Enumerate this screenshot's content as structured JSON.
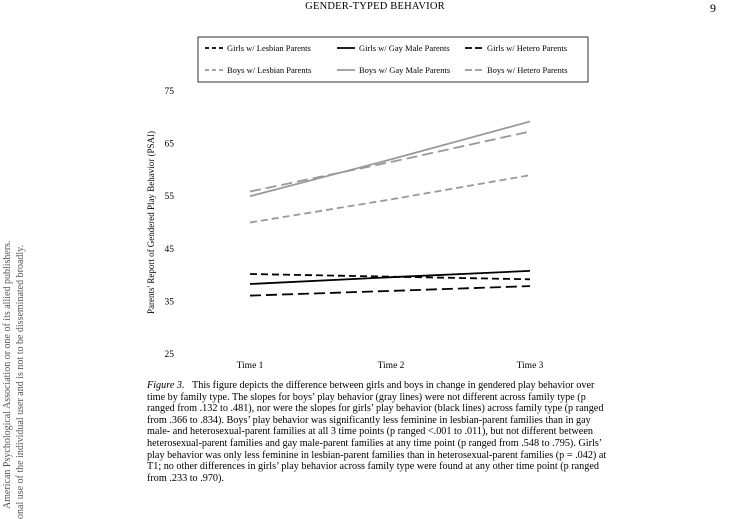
{
  "header": {
    "running_head": "GENDER-TYPED BEHAVIOR",
    "page_number": "9"
  },
  "side_notice": {
    "line1": "American Psychological Association or one of its allied publishers.",
    "line2": "onal use of the individual user and is not to be disseminated broadly."
  },
  "chart_data": {
    "type": "line",
    "title": "",
    "xlabel": "",
    "ylabel": "Parents' Report of Gendered Play Behavior (PSAI)",
    "categories": [
      "Time 1",
      "Time 2",
      "Time 3"
    ],
    "ylim": [
      25,
      75
    ],
    "yticks": [
      25,
      35,
      45,
      55,
      65,
      75
    ],
    "grid": false,
    "legend_position": "top",
    "series": [
      {
        "name": "Girls w/ Lesbian Parents",
        "values": [
          40.2,
          39.7,
          39.2
        ],
        "color": "#000000",
        "dash": "dashed"
      },
      {
        "name": "Girls w/ Gay Male Parents",
        "values": [
          38.3,
          39.6,
          40.8
        ],
        "color": "#000000",
        "dash": "solid"
      },
      {
        "name": "Girls w/ Hetero Parents",
        "values": [
          36.1,
          37.0,
          37.9
        ],
        "color": "#000000",
        "dash": "longdash"
      },
      {
        "name": "Boys w/ Lesbian Parents",
        "values": [
          50.0,
          54.4,
          59.0
        ],
        "color": "#999999",
        "dash": "dashed"
      },
      {
        "name": "Boys w/ Gay Male Parents",
        "values": [
          55.0,
          62.0,
          69.2
        ],
        "color": "#999999",
        "dash": "solid"
      },
      {
        "name": "Boys w/ Hetero Parents",
        "values": [
          55.9,
          61.5,
          67.3
        ],
        "color": "#999999",
        "dash": "longdash"
      }
    ]
  },
  "caption": {
    "label": "Figure 3.",
    "text": "This figure depicts the difference between girls and boys in change in gendered play behavior over time by family type. The slopes for boys’ play behavior (gray lines) were not different across family type (p ranged from .132 to .481), nor were the slopes for girls’ play behavior (black lines) across family type (p ranged from .366 to .834). Boys’ play behavior was significantly less feminine in lesbian-parent families than in gay male- and heterosexual-parent families at all 3 time points (p ranged <.001 to .011), but not different between heterosexual-parent families and gay male-parent families at any time point (p ranged from .548 to .795). Girls’ play behavior was only less feminine in lesbian-parent families than in heterosexual-parent families (p = .042) at T1; no other differences in girls’ play behavior across family type were found at any other time point (p ranged from .233 to .970)."
  }
}
